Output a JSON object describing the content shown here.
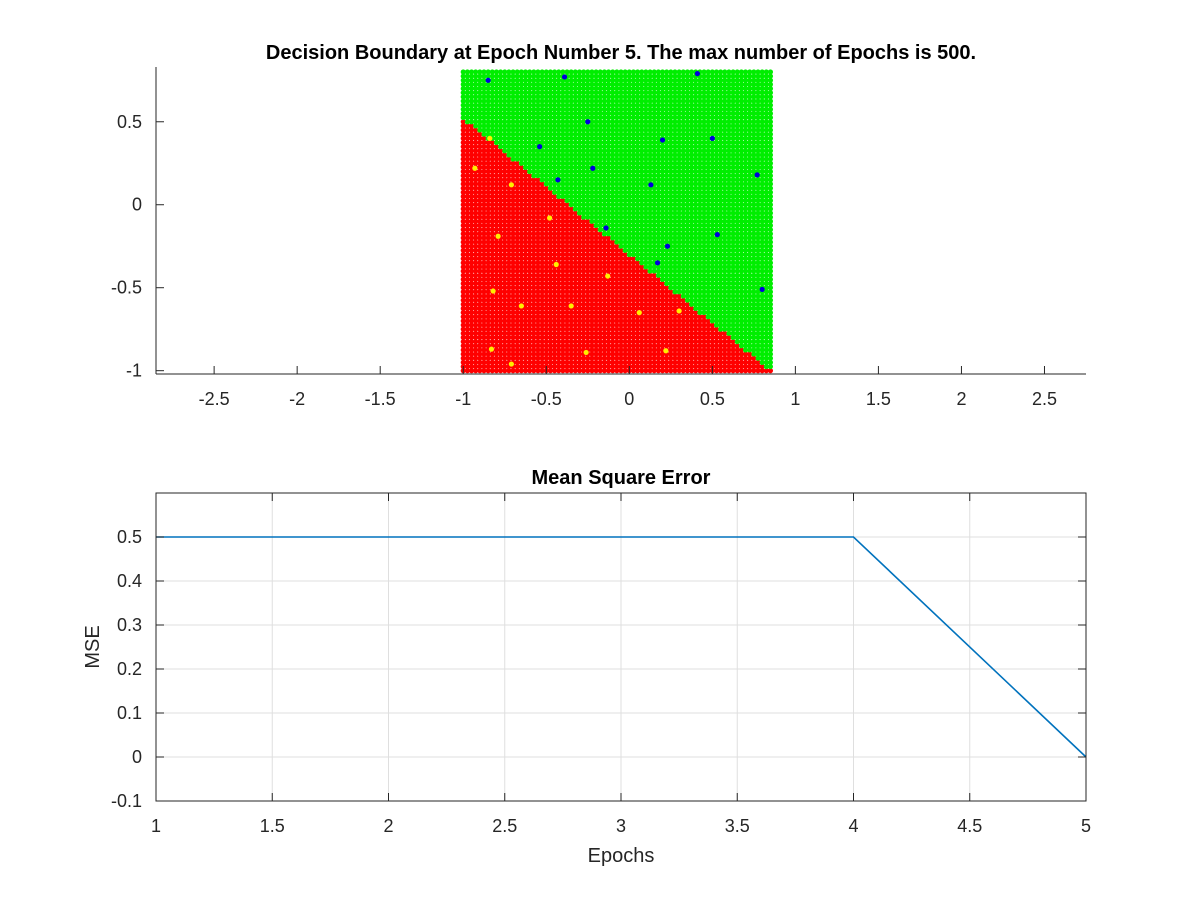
{
  "chart_data": [
    {
      "type": "scatter",
      "title": "Decision Boundary at Epoch Number 5. The max number of Epochs is 500.",
      "xlabel": "",
      "ylabel": "",
      "xlim": [
        -2.85,
        2.75
      ],
      "ylim": [
        -1.02,
        0.83
      ],
      "xticks": [
        "-2.5",
        "-2",
        "-1.5",
        "-1",
        "-0.5",
        "0",
        "0.5",
        "1",
        "1.5",
        "2",
        "2.5"
      ],
      "yticks": [
        "-1",
        "-0.5",
        "0",
        "0.5"
      ],
      "grid": false,
      "region": {
        "x_range": [
          -1,
          0.85
        ],
        "y_range": [
          -1,
          0.8
        ],
        "grid_step": 0.025,
        "boundary": {
          "x": [
            -1,
            0.85
          ],
          "y": [
            0.52,
            -1.0
          ]
        },
        "above_color": "#00ee00",
        "below_color": "#ff0000"
      },
      "series": [
        {
          "color": "#0000dd",
          "points": [
            [
              -0.85,
              0.75
            ],
            [
              -0.39,
              0.77
            ],
            [
              0.41,
              0.79
            ],
            [
              -0.25,
              0.5
            ],
            [
              -0.54,
              0.35
            ],
            [
              0.2,
              0.39
            ],
            [
              0.5,
              0.4
            ],
            [
              -0.22,
              0.22
            ],
            [
              -0.43,
              0.15
            ],
            [
              0.13,
              0.12
            ],
            [
              0.77,
              0.18
            ],
            [
              -0.14,
              -0.14
            ],
            [
              0.23,
              -0.25
            ],
            [
              0.53,
              -0.18
            ],
            [
              0.17,
              -0.35
            ],
            [
              0.8,
              -0.51
            ]
          ]
        },
        {
          "color": "#ffee00",
          "points": [
            [
              -0.93,
              0.22
            ],
            [
              -0.84,
              0.4
            ],
            [
              -0.71,
              0.12
            ],
            [
              -0.79,
              -0.19
            ],
            [
              -0.48,
              -0.08
            ],
            [
              -0.44,
              -0.36
            ],
            [
              -0.13,
              -0.43
            ],
            [
              -0.82,
              -0.52
            ],
            [
              -0.65,
              -0.61
            ],
            [
              -0.35,
              -0.61
            ],
            [
              0.06,
              -0.65
            ],
            [
              0.3,
              -0.64
            ],
            [
              -0.83,
              -0.87
            ],
            [
              -0.71,
              -0.96
            ],
            [
              -0.26,
              -0.89
            ],
            [
              0.22,
              -0.88
            ]
          ]
        }
      ]
    },
    {
      "type": "line",
      "title": "Mean Square Error",
      "xlabel": "Epochs",
      "ylabel": "MSE",
      "xlim": [
        1,
        5
      ],
      "ylim": [
        -0.1,
        0.6
      ],
      "xticks": [
        "1",
        "1.5",
        "2",
        "2.5",
        "3",
        "3.5",
        "4",
        "4.5",
        "5"
      ],
      "yticks": [
        "-0.1",
        "0",
        "0.1",
        "0.2",
        "0.3",
        "0.4",
        "0.5"
      ],
      "grid": true,
      "series": [
        {
          "color": "#0072bd",
          "x": [
            1,
            2,
            3,
            4,
            5
          ],
          "y": [
            0.5,
            0.5,
            0.5,
            0.5,
            0
          ]
        }
      ]
    }
  ]
}
